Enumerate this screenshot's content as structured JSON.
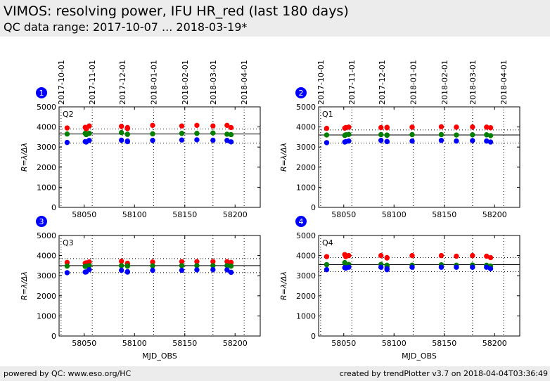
{
  "header": {
    "title": "VIMOS: resolving power, IFU HR_red (last 180 days)",
    "subtitle": "QC data range: 2017-10-07 ... 2018-03-19*"
  },
  "footer": {
    "left": "powered by QC: www.eso.org/HC",
    "right": "created by trendPlotter v3.7 on 2018-04-04T03:36:49"
  },
  "colors": {
    "red": "#ff0000",
    "green": "#007f00",
    "blue": "#0000ff",
    "badge": "#0000ff"
  },
  "chart_data": [
    {
      "type": "scatter",
      "badge": "1",
      "panel_label": "Q2",
      "xlabel": "",
      "ylabel": "R=λ/Δλ",
      "xlim": [
        58025,
        58225
      ],
      "ylim": [
        0,
        5000
      ],
      "xticks": [
        58050,
        58100,
        58150,
        58200
      ],
      "yticks": [
        0,
        1000,
        2000,
        3000,
        4000,
        5000
      ],
      "date_ticks": [
        {
          "mjd": 58027,
          "label": "2017-10-01"
        },
        {
          "mjd": 58058,
          "label": "2017-11-01"
        },
        {
          "mjd": 58088,
          "label": "2017-12-01"
        },
        {
          "mjd": 58119,
          "label": "2018-01-01"
        },
        {
          "mjd": 58150,
          "label": "2018-02-01"
        },
        {
          "mjd": 58178,
          "label": "2018-03-01"
        },
        {
          "mjd": 58209,
          "label": "2018-04-01"
        }
      ],
      "hline": 3650,
      "hline_dotted": [
        3900,
        3200
      ],
      "series": [
        {
          "color": "red",
          "x": [
            58033,
            58051,
            58052,
            58055,
            58087,
            58093,
            58093,
            58118,
            58147,
            58162,
            58178,
            58192,
            58196
          ],
          "y": [
            3950,
            3980,
            3900,
            4050,
            4030,
            3920,
            3970,
            4080,
            4050,
            4080,
            4050,
            4080,
            3970
          ]
        },
        {
          "color": "green",
          "x": [
            58033,
            58051,
            58052,
            58055,
            58087,
            58093,
            58093,
            58118,
            58147,
            58162,
            58178,
            58192,
            58196
          ],
          "y": [
            3650,
            3680,
            3620,
            3680,
            3720,
            3630,
            3640,
            3660,
            3680,
            3680,
            3700,
            3640,
            3620
          ]
        },
        {
          "color": "blue",
          "x": [
            58033,
            58051,
            58052,
            58055,
            58087,
            58093,
            58093,
            58118,
            58147,
            58162,
            58178,
            58192,
            58196
          ],
          "y": [
            3230,
            3270,
            3250,
            3330,
            3340,
            3270,
            3300,
            3330,
            3350,
            3360,
            3340,
            3330,
            3260
          ]
        }
      ]
    },
    {
      "type": "scatter",
      "badge": "2",
      "panel_label": "Q1",
      "xlabel": "",
      "ylabel": "R=λ/Δλ",
      "xlim": [
        58025,
        58225
      ],
      "ylim": [
        0,
        5000
      ],
      "xticks": [
        58050,
        58100,
        58150,
        58200
      ],
      "yticks": [
        0,
        1000,
        2000,
        3000,
        4000,
        5000
      ],
      "date_ticks": [
        {
          "mjd": 58027,
          "label": "2017-10-01"
        },
        {
          "mjd": 58058,
          "label": "2017-11-01"
        },
        {
          "mjd": 58088,
          "label": "2017-12-01"
        },
        {
          "mjd": 58119,
          "label": "2018-01-01"
        },
        {
          "mjd": 58150,
          "label": "2018-02-01"
        },
        {
          "mjd": 58178,
          "label": "2018-03-01"
        },
        {
          "mjd": 58209,
          "label": "2018-04-01"
        }
      ],
      "hline": 3600,
      "hline_dotted": [
        3850,
        3200
      ],
      "series": [
        {
          "color": "red",
          "x": [
            58033,
            58051,
            58052,
            58055,
            58087,
            58093,
            58093,
            58118,
            58147,
            58162,
            58178,
            58192,
            58196
          ],
          "y": [
            3930,
            3940,
            3970,
            3990,
            3970,
            3960,
            3980,
            3990,
            4010,
            3990,
            4000,
            3990,
            3960
          ]
        },
        {
          "color": "green",
          "x": [
            58033,
            58051,
            58052,
            58055,
            58087,
            58093,
            58093,
            58118,
            58147,
            58162,
            58178,
            58192,
            58196
          ],
          "y": [
            3600,
            3580,
            3610,
            3630,
            3620,
            3590,
            3600,
            3620,
            3620,
            3600,
            3610,
            3610,
            3570
          ]
        },
        {
          "color": "blue",
          "x": [
            58033,
            58051,
            58052,
            58055,
            58087,
            58093,
            58093,
            58118,
            58147,
            58162,
            58178,
            58192,
            58196
          ],
          "y": [
            3220,
            3250,
            3270,
            3300,
            3330,
            3280,
            3270,
            3300,
            3330,
            3300,
            3320,
            3300,
            3250
          ]
        }
      ]
    },
    {
      "type": "scatter",
      "badge": "3",
      "panel_label": "Q3",
      "xlabel": "",
      "ylabel": "R=λ/Δλ",
      "xlim": [
        58025,
        58225
      ],
      "ylim": [
        0,
        5000
      ],
      "xticks": [
        58050,
        58100,
        58150,
        58200
      ],
      "yticks": [
        0,
        1000,
        2000,
        3000,
        4000,
        5000
      ],
      "date_ticks": [],
      "hline": 3500,
      "hline_dotted": [
        3850,
        3150
      ],
      "series": [
        {
          "color": "red",
          "x": [
            58033,
            58051,
            58052,
            58055,
            58087,
            58093,
            58093,
            58118,
            58147,
            58162,
            58178,
            58192,
            58196
          ],
          "y": [
            3660,
            3620,
            3640,
            3680,
            3720,
            3580,
            3620,
            3680,
            3700,
            3700,
            3700,
            3700,
            3660
          ]
        },
        {
          "color": "green",
          "x": [
            58033,
            58051,
            58052,
            58055,
            58087,
            58093,
            58093,
            58118,
            58147,
            58162,
            58178,
            58192,
            58196
          ],
          "y": [
            3480,
            3460,
            3470,
            3500,
            3500,
            3480,
            3490,
            3490,
            3500,
            3500,
            3500,
            3500,
            3480
          ]
        },
        {
          "color": "blue",
          "x": [
            58033,
            58051,
            58052,
            58055,
            58087,
            58093,
            58093,
            58118,
            58147,
            58162,
            58178,
            58192,
            58196
          ],
          "y": [
            3150,
            3180,
            3190,
            3300,
            3270,
            3180,
            3200,
            3270,
            3270,
            3290,
            3300,
            3290,
            3170
          ]
        }
      ]
    },
    {
      "type": "scatter",
      "badge": "4",
      "panel_label": "Q4",
      "xlabel": "MJD_OBS",
      "ylabel": "R=λ/Δλ",
      "xlim": [
        58025,
        58225
      ],
      "ylim": [
        0,
        5000
      ],
      "xticks": [
        58050,
        58100,
        58150,
        58200
      ],
      "yticks": [
        0,
        1000,
        2000,
        3000,
        4000,
        5000
      ],
      "date_ticks": [],
      "hline": 3550,
      "hline_dotted": [
        3900,
        3200
      ],
      "series": [
        {
          "color": "red",
          "x": [
            58033,
            58051,
            58052,
            58055,
            58087,
            58093,
            58093,
            58118,
            58147,
            58162,
            58178,
            58192,
            58196
          ],
          "y": [
            3950,
            4050,
            3950,
            4000,
            4000,
            3900,
            3880,
            4000,
            4000,
            3970,
            4000,
            3970,
            3900
          ]
        },
        {
          "color": "green",
          "x": [
            58033,
            58051,
            58052,
            58055,
            58087,
            58093,
            58093,
            58118,
            58147,
            58162,
            58178,
            58192,
            58196
          ],
          "y": [
            3550,
            3650,
            3500,
            3560,
            3560,
            3520,
            3450,
            3520,
            3540,
            3520,
            3530,
            3520,
            3480
          ]
        },
        {
          "color": "blue",
          "x": [
            58033,
            58051,
            58052,
            58055,
            58087,
            58093,
            58093,
            58118,
            58147,
            58162,
            58178,
            58192,
            58196
          ],
          "y": [
            3300,
            3400,
            3380,
            3420,
            3420,
            3350,
            3300,
            3420,
            3420,
            3420,
            3420,
            3420,
            3350
          ]
        }
      ]
    }
  ],
  "bottom_xlabel": "MJD_OBS"
}
